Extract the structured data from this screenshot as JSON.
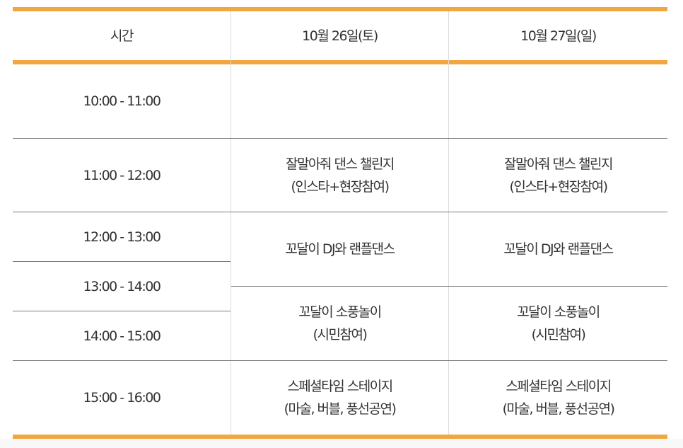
{
  "accent_color": "#f2a640",
  "header": {
    "time": "시간",
    "day1": "10월 26일(토)",
    "day2": "10월 27일(일)"
  },
  "times": [
    "10:00 - 11:00",
    "11:00 - 12:00",
    "12:00 - 13:00",
    "13:00 - 14:00",
    "14:00 - 15:00",
    "15:00 - 16:00"
  ],
  "day1": {
    "dance_challenge": [
      "잘말아줘 댄스 챌린지",
      "(인스타+현장참여)"
    ],
    "dj_dance": [
      "꼬달이 DJ와 랜플댄스"
    ],
    "balloon_play": [
      "꼬달이 소풍놀이",
      "(시민참여)"
    ],
    "special_stage": [
      "스페셜타임 스테이지",
      "(마술, 버블, 풍선공연)"
    ]
  },
  "day2": {
    "dance_challenge": [
      "잘말아줘 댄스 챌린지",
      "(인스타+현장참여)"
    ],
    "dj_dance": [
      "꼬달이 DJ와 랜플댄스"
    ],
    "balloon_play": [
      "꼬달이 소풍놀이",
      "(시민참여)"
    ],
    "special_stage": [
      "스페셜타임 스테이지",
      "(마술, 버블, 풍선공연)"
    ]
  }
}
